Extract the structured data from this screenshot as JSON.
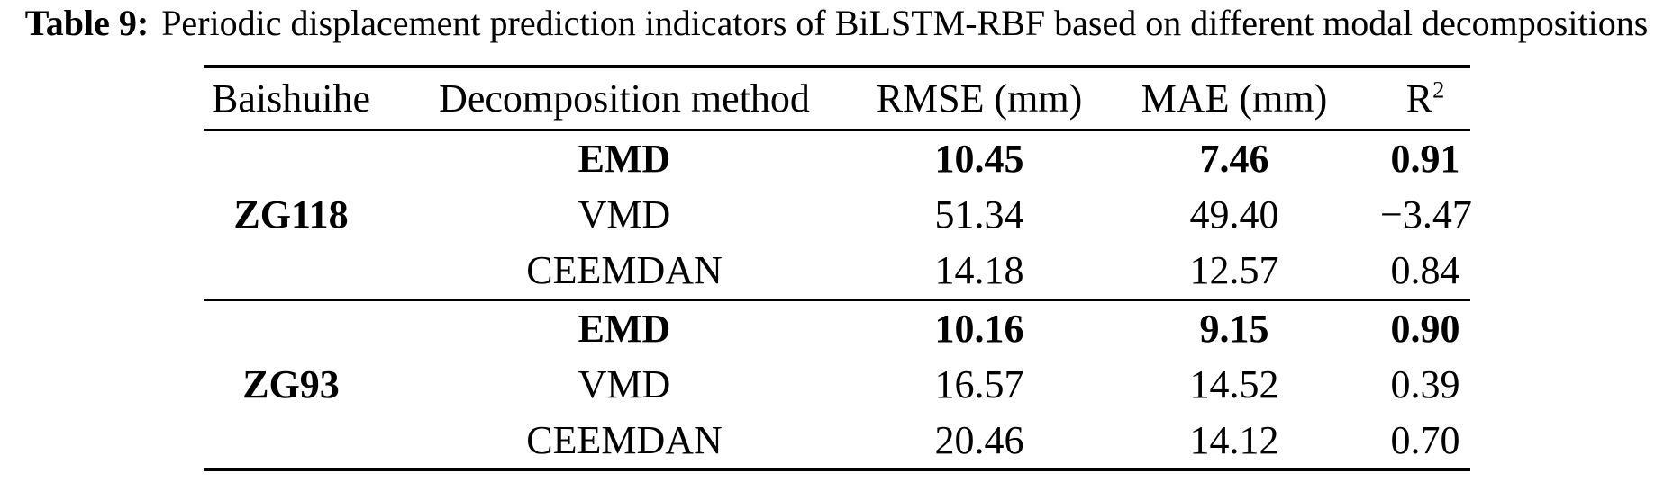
{
  "caption": {
    "label": "Table 9:",
    "text": "Periodic displacement prediction indicators of BiLSTM-RBF based on different modal decompositions"
  },
  "table": {
    "headers": {
      "site": "Baishuihe",
      "method": "Decomposition method",
      "rmse": "RMSE (mm)",
      "mae": "MAE (mm)",
      "r_base": "R",
      "r_sup": "2"
    },
    "groups": [
      {
        "site": "ZG118",
        "rows": [
          {
            "method": "EMD",
            "rmse": "10.45",
            "mae": "7.46",
            "r2": "0.91"
          },
          {
            "method": "VMD",
            "rmse": "51.34",
            "mae": "49.40",
            "r2": "−3.47"
          },
          {
            "method": "CEEMDAN",
            "rmse": "14.18",
            "mae": "12.57",
            "r2": "0.84"
          }
        ]
      },
      {
        "site": "ZG93",
        "rows": [
          {
            "method": "EMD",
            "rmse": "10.16",
            "mae": "9.15",
            "r2": "0.90"
          },
          {
            "method": "VMD",
            "rmse": "16.57",
            "mae": "14.52",
            "r2": "0.39"
          },
          {
            "method": "CEEMDAN",
            "rmse": "20.46",
            "mae": "14.12",
            "r2": "0.70"
          }
        ]
      }
    ]
  }
}
